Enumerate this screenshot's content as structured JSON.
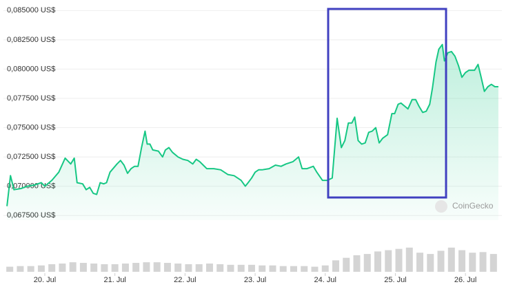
{
  "chart_data": [
    {
      "type": "line",
      "color": "#16c784",
      "grid": true,
      "watermark": "CoinGecko",
      "xlim": [
        19.41,
        26.52
      ],
      "ylim": [
        0.0671,
        0.0859
      ],
      "xticks": [
        {
          "value": 20,
          "label": "20. Jul"
        },
        {
          "value": 21,
          "label": "21. Jul"
        },
        {
          "value": 22,
          "label": "22. Jul"
        },
        {
          "value": 23,
          "label": "23. Jul"
        },
        {
          "value": 24,
          "label": "24. Jul"
        },
        {
          "value": 25,
          "label": "25. Jul"
        },
        {
          "value": 26,
          "label": "26. Jul"
        }
      ],
      "yticks": [
        {
          "value": 0.085,
          "label": "0,085000 US$"
        },
        {
          "value": 0.0825,
          "label": "0,082500 US$"
        },
        {
          "value": 0.08,
          "label": "0,080000 US$"
        },
        {
          "value": 0.0775,
          "label": "0,077500 US$"
        },
        {
          "value": 0.075,
          "label": "0,075000 US$"
        },
        {
          "value": 0.0725,
          "label": "0,072500 US$"
        },
        {
          "value": 0.07,
          "label": "0,070000 US$"
        },
        {
          "value": 0.0675,
          "label": "0,067500 US$"
        }
      ],
      "x": [
        19.46,
        19.51,
        19.56,
        19.66,
        19.75,
        19.85,
        19.95,
        20.0,
        20.1,
        20.2,
        20.29,
        20.37,
        20.42,
        20.46,
        20.54,
        20.59,
        20.64,
        20.69,
        20.74,
        20.79,
        20.84,
        20.88,
        20.93,
        21.03,
        21.08,
        21.13,
        21.18,
        21.23,
        21.28,
        21.33,
        21.38,
        21.43,
        21.46,
        21.5,
        21.54,
        21.62,
        21.68,
        21.72,
        21.77,
        21.82,
        21.9,
        21.97,
        22.04,
        22.11,
        22.16,
        22.21,
        22.26,
        22.31,
        22.41,
        22.51,
        22.61,
        22.7,
        22.8,
        22.86,
        22.9,
        22.95,
        23.0,
        23.05,
        23.1,
        23.2,
        23.29,
        23.37,
        23.44,
        23.54,
        23.62,
        23.67,
        23.74,
        23.83,
        23.88,
        23.96,
        24.03,
        24.1,
        24.17,
        24.23,
        24.28,
        24.33,
        24.38,
        24.42,
        24.47,
        24.52,
        24.57,
        24.62,
        24.67,
        24.72,
        24.77,
        24.82,
        24.89,
        24.95,
        24.99,
        25.04,
        25.08,
        25.14,
        25.18,
        25.24,
        25.29,
        25.34,
        25.39,
        25.44,
        25.49,
        25.53,
        25.58,
        25.62,
        25.67,
        25.7,
        25.75,
        25.8,
        25.85,
        25.9,
        25.95,
        26.0,
        26.05,
        26.13,
        26.18,
        26.22,
        26.27,
        26.32,
        26.37,
        26.42,
        26.47
      ],
      "values": [
        0.0683,
        0.0709,
        0.0697,
        0.0698,
        0.07,
        0.0701,
        0.0703,
        0.07,
        0.0705,
        0.0712,
        0.0724,
        0.0719,
        0.0724,
        0.0703,
        0.0702,
        0.0697,
        0.0699,
        0.0694,
        0.0693,
        0.0703,
        0.0702,
        0.0703,
        0.0712,
        0.0719,
        0.0722,
        0.0718,
        0.0711,
        0.0715,
        0.0717,
        0.0717,
        0.0733,
        0.0747,
        0.0736,
        0.0736,
        0.0731,
        0.073,
        0.0725,
        0.0731,
        0.0733,
        0.0729,
        0.0725,
        0.0723,
        0.0722,
        0.0719,
        0.0723,
        0.0721,
        0.0718,
        0.0715,
        0.0715,
        0.0714,
        0.071,
        0.0709,
        0.0705,
        0.07,
        0.0703,
        0.0707,
        0.0712,
        0.0714,
        0.0714,
        0.0715,
        0.0718,
        0.0717,
        0.0719,
        0.0721,
        0.0725,
        0.0715,
        0.0715,
        0.0717,
        0.0712,
        0.0705,
        0.0705,
        0.0707,
        0.0758,
        0.0733,
        0.0739,
        0.0754,
        0.0754,
        0.0759,
        0.0739,
        0.0736,
        0.0737,
        0.0746,
        0.0747,
        0.075,
        0.0737,
        0.0741,
        0.0744,
        0.0762,
        0.0762,
        0.077,
        0.0771,
        0.0768,
        0.0766,
        0.0774,
        0.0774,
        0.0768,
        0.0763,
        0.0764,
        0.077,
        0.0784,
        0.0806,
        0.0817,
        0.0821,
        0.0807,
        0.0814,
        0.0815,
        0.0811,
        0.0803,
        0.0793,
        0.0797,
        0.0799,
        0.0799,
        0.0804,
        0.0794,
        0.0781,
        0.0785,
        0.0787,
        0.0785,
        0.0785
      ]
    },
    {
      "type": "bar",
      "color": "#d4d4d4",
      "xlim": [
        19.41,
        26.52
      ],
      "ylim": [
        0,
        40
      ],
      "x": [
        19.5,
        19.65,
        19.8,
        19.95,
        20.1,
        20.25,
        20.4,
        20.55,
        20.7,
        20.85,
        21.0,
        21.15,
        21.3,
        21.45,
        21.6,
        21.75,
        21.9,
        22.05,
        22.2,
        22.35,
        22.5,
        22.65,
        22.8,
        22.95,
        23.1,
        23.25,
        23.4,
        23.55,
        23.7,
        23.85,
        24.0,
        24.15,
        24.3,
        24.45,
        24.6,
        24.75,
        24.9,
        25.05,
        25.2,
        25.35,
        25.5,
        25.65,
        25.8,
        25.95,
        26.1,
        26.25,
        26.4
      ],
      "values": [
        8,
        9,
        9,
        10,
        12,
        13,
        15,
        14,
        13,
        12,
        12,
        13,
        14,
        15,
        15,
        14,
        13,
        12,
        12,
        13,
        12,
        11,
        11,
        11,
        10,
        10,
        9,
        9,
        9,
        8,
        10,
        18,
        22,
        26,
        28,
        32,
        34,
        36,
        38,
        30,
        28,
        33,
        38,
        34,
        30,
        31,
        28
      ]
    }
  ]
}
